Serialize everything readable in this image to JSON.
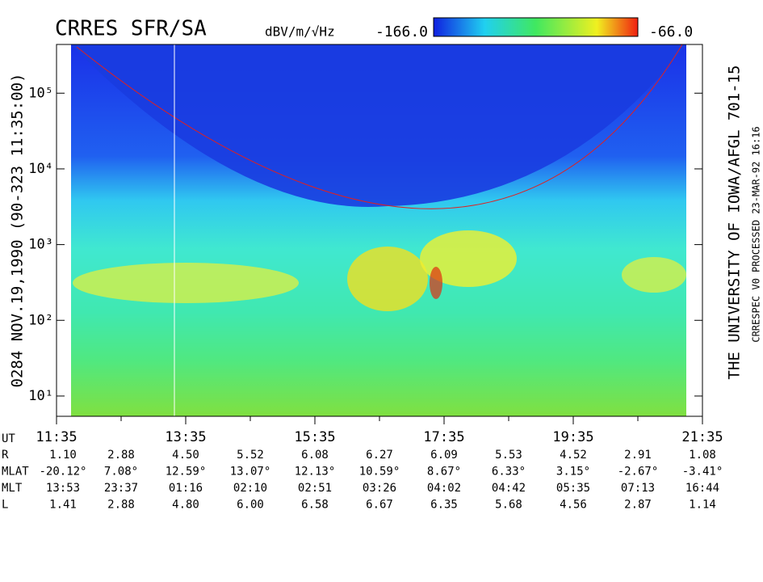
{
  "chart_data": {
    "type": "spectrogram",
    "title": "CRRES SFR/SA",
    "colorbar": {
      "label": "dBV/m/√Hz",
      "min": {
        "value": -166,
        "label": "-166.0"
      },
      "max": {
        "value": -66,
        "label": "-66.0"
      }
    },
    "left_label": "0284  NOV.19,1990  (90-323 11:35:00)",
    "right_label": "THE UNIVERSITY OF IOWA/AFGL 701-15",
    "right_label_2": "CRRESPEC V0  PROCESSED 23-MAR-92  16:16",
    "log_y": true,
    "ylim": [
      5.4,
      440000
    ],
    "yticks": [
      {
        "value": 10,
        "label": "10¹"
      },
      {
        "value": 100,
        "label": "10²"
      },
      {
        "value": 1000,
        "label": "10³"
      },
      {
        "value": 10000,
        "label": "10⁴"
      },
      {
        "value": 100000,
        "label": "10⁵"
      }
    ],
    "x_label": "UT",
    "categories": [
      "11:35",
      null,
      "13:35",
      null,
      "15:35",
      null,
      "17:35",
      null,
      "19:35",
      null,
      "21:35"
    ],
    "ephemeris": [
      {
        "name": "R",
        "values": [
          "1.10",
          "2.88",
          "4.50",
          "5.52",
          "6.08",
          "6.27",
          "6.09",
          "5.53",
          "4.52",
          "2.91",
          "1.08"
        ]
      },
      {
        "name": "MLAT",
        "values": [
          "-20.12°",
          "7.08°",
          "12.59°",
          "13.07°",
          "12.13°",
          "10.59°",
          "8.67°",
          "6.33°",
          "3.15°",
          "-2.67°",
          "-3.41°"
        ]
      },
      {
        "name": "MLT",
        "values": [
          "13:53",
          "23:37",
          "01:16",
          "02:10",
          "02:51",
          "03:26",
          "04:02",
          "04:42",
          "05:35",
          "07:13",
          "16:44"
        ]
      },
      {
        "name": "L",
        "values": [
          "1.41",
          "2.88",
          "4.80",
          "6.00",
          "6.58",
          "6.67",
          "6.35",
          "5.68",
          "4.56",
          "2.87",
          "1.14"
        ]
      }
    ]
  }
}
